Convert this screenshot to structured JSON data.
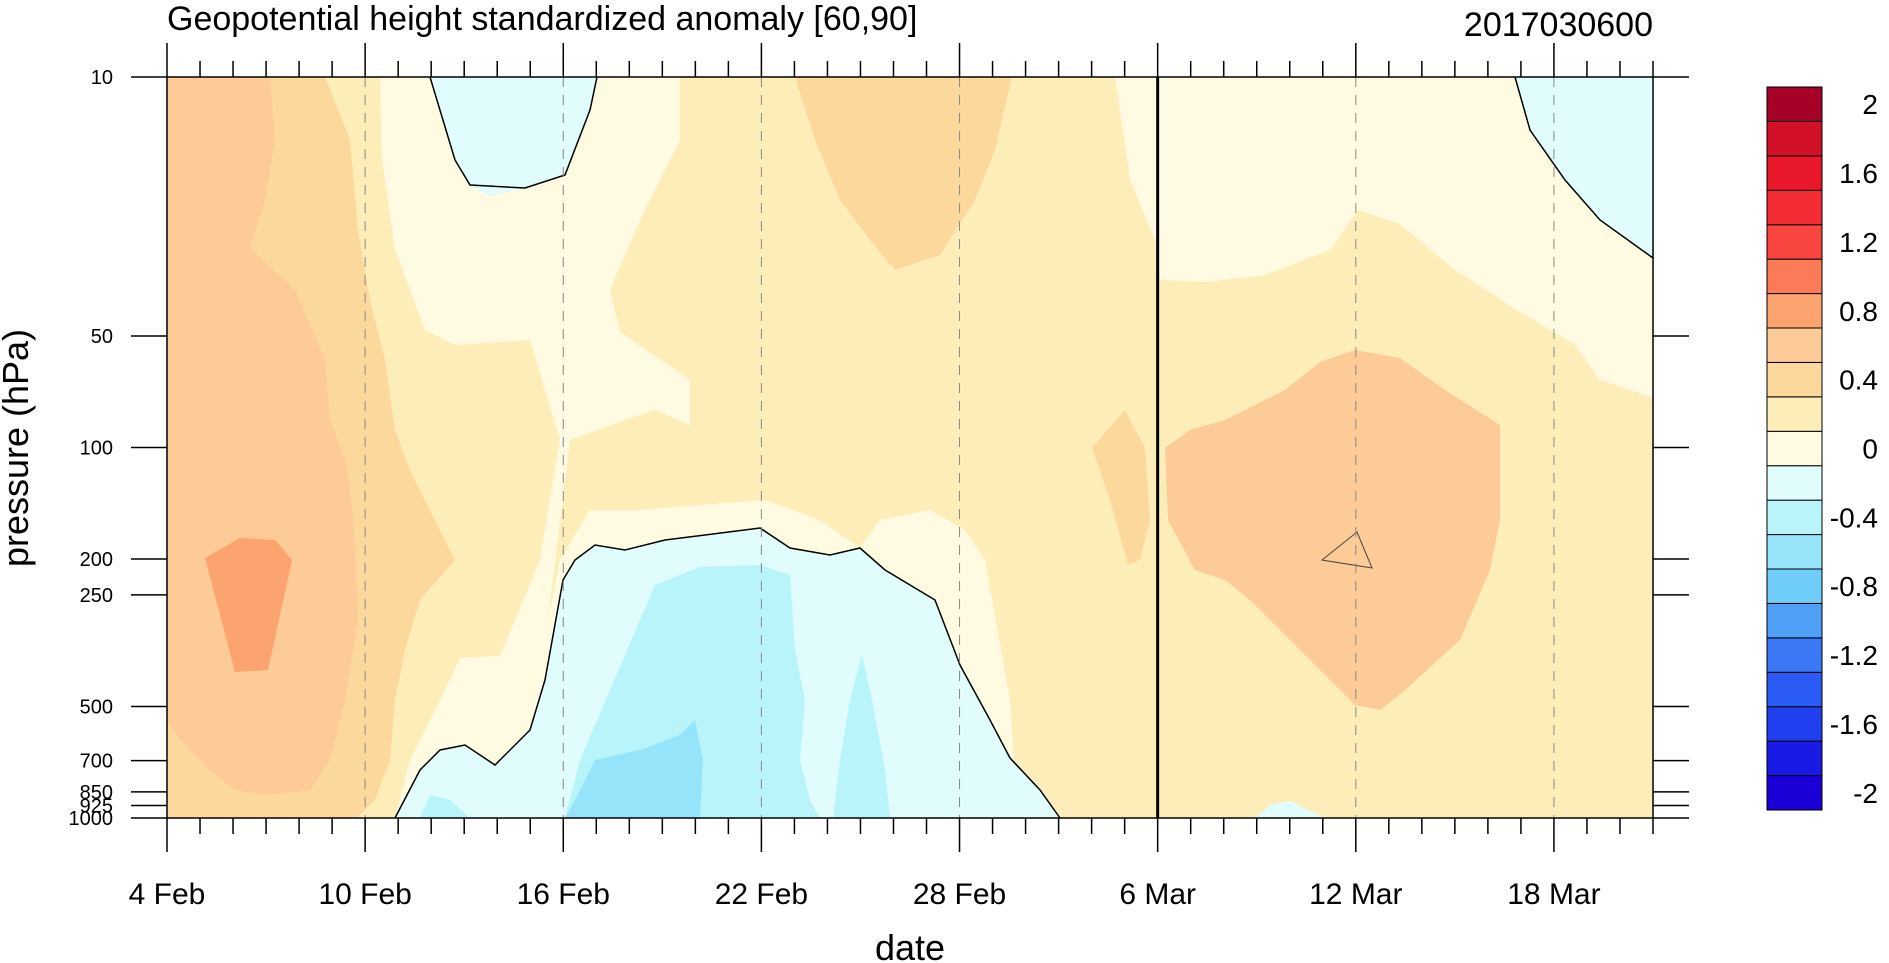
{
  "chart_data": {
    "type": "heatmap",
    "title": "Geopotential height standardized anomaly [60,90]",
    "subtitle": "2017030600",
    "xlabel": "date",
    "ylabel": "pressure (hPa)",
    "x_tick_labels": [
      "4 Feb",
      "10 Feb",
      "16 Feb",
      "22 Feb",
      "28 Feb",
      "6 Mar",
      "12 Mar",
      "18 Mar"
    ],
    "x_tick_days": [
      0,
      6,
      12,
      18,
      24,
      30,
      36,
      42
    ],
    "x_range_days": [
      0,
      45
    ],
    "y_tick_labels": [
      "10",
      "50",
      "100",
      "200",
      "250",
      "500",
      "700",
      "850",
      "925",
      "1000"
    ],
    "y_tick_values": [
      10,
      50,
      100,
      200,
      250,
      500,
      700,
      850,
      925,
      1000
    ],
    "y_range_hPa": [
      1000,
      10
    ],
    "y_scale": "log",
    "reference_line_day": 30,
    "colorbar": {
      "levels": [
        -2,
        -1.8,
        -1.6,
        -1.4,
        -1.2,
        -1,
        -0.8,
        -0.6,
        -0.4,
        -0.2,
        0,
        0.2,
        0.4,
        0.6,
        0.8,
        1,
        1.2,
        1.4,
        1.6,
        1.8,
        2
      ],
      "labels": [
        "2",
        "1.6",
        "1.2",
        "0.8",
        "0.4",
        "0",
        "-0.4",
        "-0.8",
        "-1.2",
        "-1.6",
        "-2"
      ],
      "colors": [
        "#1a00d6",
        "#1a1ae6",
        "#2040f0",
        "#2a5cf5",
        "#3a78f5",
        "#50a0f8",
        "#70ccf8",
        "#96e4fa",
        "#b8f4fa",
        "#e0fcfc",
        "#fffbe3",
        "#fdeeb9",
        "#fcd89d",
        "#fccb97",
        "#fca46f",
        "#fb7a58",
        "#f94540",
        "#f42c36",
        "#e8182a",
        "#d21028",
        "#a50026"
      ]
    },
    "grid": "dashed vertical at date ticks"
  }
}
